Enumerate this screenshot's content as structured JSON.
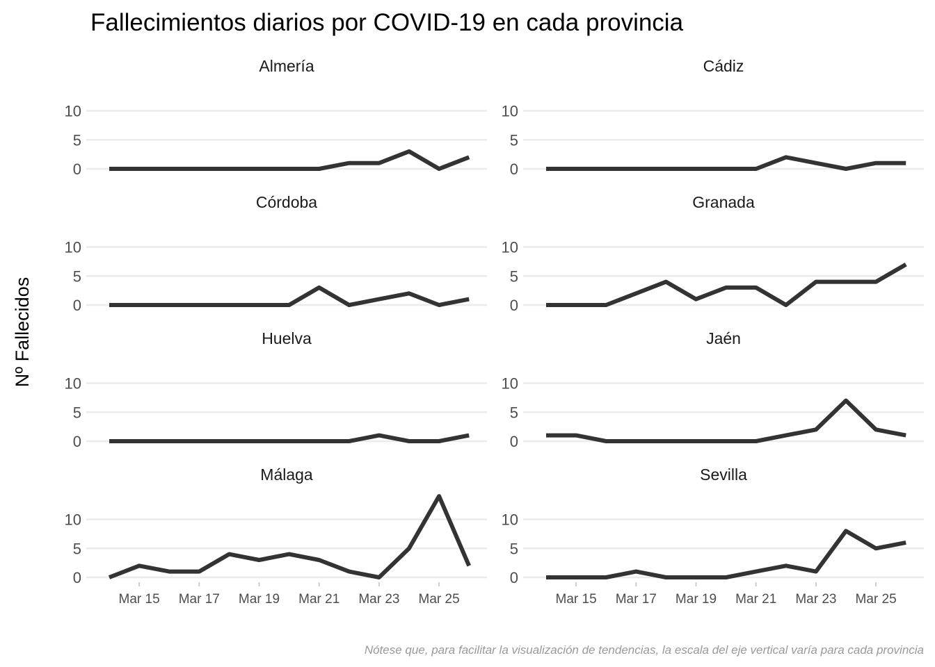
{
  "chart_data": {
    "type": "line",
    "title": "Fallecimientos diarios por COVID-19 en cada provincia",
    "ylabel": "Nº Fallecidos",
    "caption": "Nótese que, para facilitar la visualización de tendencias, la escala del eje vertical varía para cada provincia",
    "x": [
      "2020-03-14",
      "2020-03-15",
      "2020-03-16",
      "2020-03-17",
      "2020-03-18",
      "2020-03-19",
      "2020-03-20",
      "2020-03-21",
      "2020-03-22",
      "2020-03-23",
      "2020-03-24",
      "2020-03-25",
      "2020-03-26"
    ],
    "x_tick_labels": [
      "Mar 15",
      "Mar 17",
      "Mar 19",
      "Mar 21",
      "Mar 23",
      "Mar 25"
    ],
    "x_tick_values": [
      "2020-03-15",
      "2020-03-17",
      "2020-03-19",
      "2020-03-21",
      "2020-03-23",
      "2020-03-25"
    ],
    "y_ticks": [
      0,
      5,
      10
    ],
    "y_tick_labels": [
      "0",
      "5",
      "10"
    ],
    "grid": true,
    "panels": [
      {
        "name": "Almería",
        "ylim": [
          0,
          14
        ],
        "values": [
          0,
          0,
          0,
          0,
          0,
          0,
          0,
          0,
          1,
          1,
          3,
          0,
          2
        ]
      },
      {
        "name": "Cádiz",
        "ylim": [
          0,
          14
        ],
        "values": [
          0,
          0,
          0,
          0,
          0,
          0,
          0,
          0,
          2,
          1,
          0,
          1,
          1
        ]
      },
      {
        "name": "Córdoba",
        "ylim": [
          0,
          14
        ],
        "values": [
          0,
          0,
          0,
          0,
          0,
          0,
          0,
          3,
          0,
          1,
          2,
          0,
          1
        ]
      },
      {
        "name": "Granada",
        "ylim": [
          0,
          14
        ],
        "values": [
          0,
          0,
          0,
          2,
          4,
          1,
          3,
          3,
          0,
          4,
          4,
          4,
          7
        ]
      },
      {
        "name": "Huelva",
        "ylim": [
          0,
          14
        ],
        "values": [
          0,
          0,
          0,
          0,
          0,
          0,
          0,
          0,
          0,
          1,
          0,
          0,
          1
        ]
      },
      {
        "name": "Jaén",
        "ylim": [
          0,
          14
        ],
        "values": [
          1,
          1,
          0,
          0,
          0,
          0,
          0,
          0,
          1,
          2,
          7,
          2,
          1
        ]
      },
      {
        "name": "Málaga",
        "ylim": [
          0,
          14
        ],
        "values": [
          0,
          2,
          1,
          1,
          4,
          3,
          4,
          3,
          1,
          0,
          5,
          14,
          2
        ]
      },
      {
        "name": "Sevilla",
        "ylim": [
          0,
          14
        ],
        "values": [
          0,
          0,
          0,
          1,
          0,
          0,
          0,
          1,
          2,
          1,
          8,
          5,
          6
        ]
      }
    ]
  }
}
